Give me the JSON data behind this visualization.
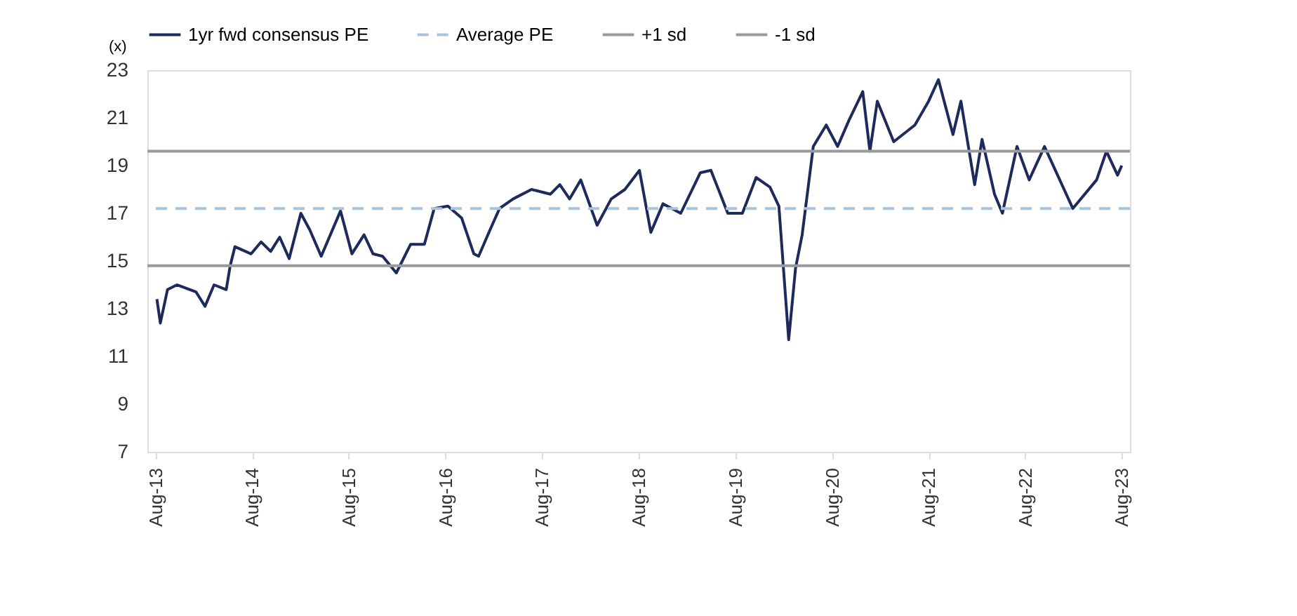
{
  "chart_data": {
    "type": "line",
    "ylabel": "(x)",
    "x": [
      "2013-08-06",
      "2013-08-19",
      "2013-09-15",
      "2013-10-21",
      "2014-01-01",
      "2014-02-04",
      "2014-03-10",
      "2014-04-25",
      "2014-05-10",
      "2014-05-28",
      "2014-07-28",
      "2014-09-04",
      "2014-10-10",
      "2014-11-13",
      "2014-12-19",
      "2015-02-01",
      "2015-03-07",
      "2015-04-19",
      "2015-07-01",
      "2015-08-13",
      "2015-09-28",
      "2015-11-01",
      "2015-12-07",
      "2016-01-28",
      "2016-03-22",
      "2016-05-13",
      "2016-06-19",
      "2016-08-10",
      "2016-10-01",
      "2016-11-16",
      "2016-12-04",
      "2017-01-16",
      "2017-02-21",
      "2017-04-13",
      "2017-06-22",
      "2017-09-01",
      "2017-10-07",
      "2017-11-13",
      "2017-12-25",
      "2018-02-25",
      "2018-04-19",
      "2018-06-10",
      "2018-08-04",
      "2018-09-16",
      "2018-11-01",
      "2019-01-07",
      "2019-03-22",
      "2019-05-01",
      "2019-07-04",
      "2019-08-28",
      "2019-10-19",
      "2019-12-10",
      "2020-01-13",
      "2020-02-19",
      "2020-03-16",
      "2020-04-10",
      "2020-05-22",
      "2020-07-10",
      "2020-08-22",
      "2020-10-04",
      "2020-11-25",
      "2020-12-22",
      "2021-01-19",
      "2021-03-22",
      "2021-06-10",
      "2021-08-01",
      "2021-09-07",
      "2021-11-01",
      "2021-12-01",
      "2022-01-22",
      "2022-02-19",
      "2022-04-07",
      "2022-05-07",
      "2022-07-01",
      "2022-08-16",
      "2022-10-13",
      "2023-01-28",
      "2023-04-28",
      "2023-06-04",
      "2023-07-16",
      "2023-08-01"
    ],
    "series": [
      {
        "name": "1yr fwd consensus PE",
        "color": "#1f2a5c",
        "values": [
          13.4,
          12.4,
          13.8,
          14.0,
          13.7,
          13.1,
          14.0,
          13.8,
          14.8,
          15.6,
          15.3,
          15.8,
          15.4,
          16.0,
          15.1,
          17.0,
          16.3,
          15.2,
          17.1,
          15.3,
          16.1,
          15.3,
          15.2,
          14.5,
          15.7,
          15.7,
          17.2,
          17.3,
          16.8,
          15.3,
          15.2,
          16.3,
          17.2,
          17.6,
          18.0,
          17.8,
          18.2,
          17.6,
          18.4,
          16.5,
          17.6,
          18.0,
          18.8,
          16.2,
          17.4,
          17.0,
          18.7,
          18.8,
          17.0,
          17.0,
          18.5,
          18.1,
          17.3,
          11.7,
          14.7,
          16.1,
          19.8,
          20.7,
          19.8,
          20.9,
          22.1,
          19.6,
          21.7,
          20.0,
          20.7,
          21.7,
          22.6,
          20.3,
          21.7,
          18.2,
          20.1,
          17.8,
          17.0,
          19.8,
          18.4,
          19.8,
          17.2,
          18.4,
          19.6,
          18.6,
          19.0
        ]
      }
    ],
    "ref_lines": [
      {
        "axis": "y",
        "value": 17.2,
        "label": "Average PE",
        "color": "#a9c4dd",
        "line_style": "dashed"
      },
      {
        "axis": "y",
        "value": 19.6,
        "label": "+1 sd",
        "color": "#9a9a9a",
        "line_style": "solid"
      },
      {
        "axis": "y",
        "value": 14.8,
        "label": "-1 sd",
        "color": "#9a9a9a",
        "line_style": "solid"
      }
    ],
    "xlim": [
      "2013-07-01",
      "2023-09-01"
    ],
    "xticks": [
      {
        "value": "2013-08-01",
        "label": "Aug-13"
      },
      {
        "value": "2014-08-01",
        "label": "Aug-14"
      },
      {
        "value": "2015-08-01",
        "label": "Aug-15"
      },
      {
        "value": "2016-08-01",
        "label": "Aug-16"
      },
      {
        "value": "2017-08-01",
        "label": "Aug-17"
      },
      {
        "value": "2018-08-01",
        "label": "Aug-18"
      },
      {
        "value": "2019-08-01",
        "label": "Aug-19"
      },
      {
        "value": "2020-08-01",
        "label": "Aug-20"
      },
      {
        "value": "2021-08-01",
        "label": "Aug-21"
      },
      {
        "value": "2022-08-01",
        "label": "Aug-22"
      },
      {
        "value": "2023-08-01",
        "label": "Aug-23"
      }
    ],
    "ylim": [
      7,
      23
    ],
    "yticks": [
      7,
      9,
      11,
      13,
      15,
      17,
      19,
      21,
      23
    ],
    "grid": false,
    "legend": "top",
    "marker": "none",
    "line_style": "solid"
  }
}
